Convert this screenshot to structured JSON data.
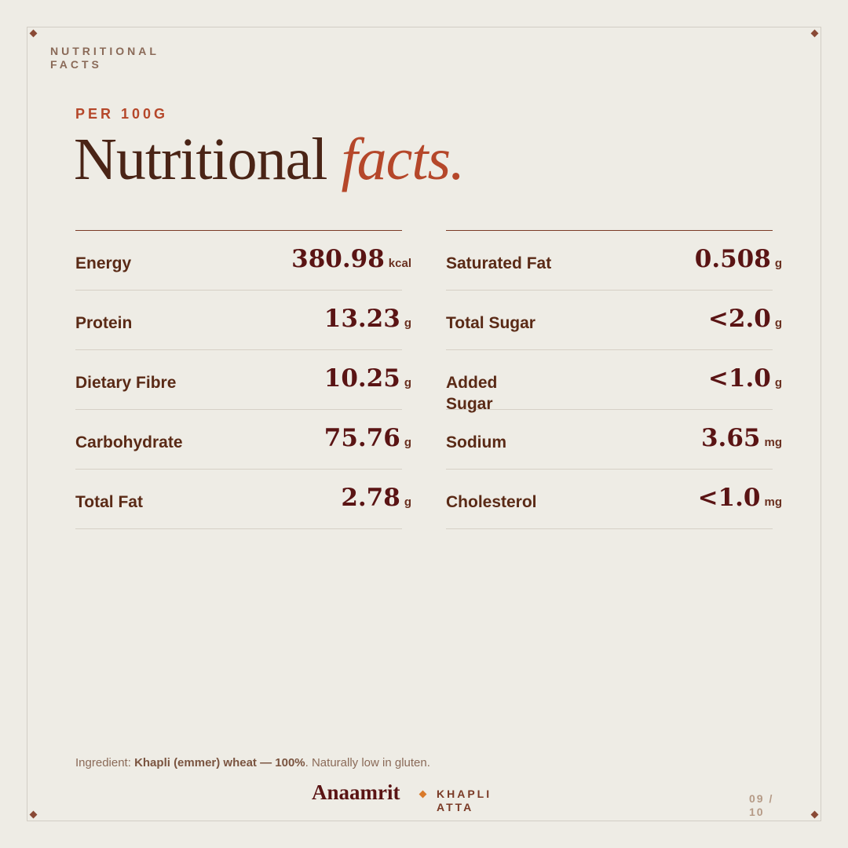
{
  "header": {
    "label": "NUTRITIONAL FACTS"
  },
  "eyebrow": "PER 100G",
  "title": {
    "main": "Nutritional",
    "accent": "facts."
  },
  "table": {
    "left": [
      {
        "label": "Energy",
        "value": "380.98",
        "unit": "kcal"
      },
      {
        "label": "Protein",
        "value": "13.23",
        "unit": "g"
      },
      {
        "label": "Dietary Fibre",
        "value": "10.25",
        "unit": "g"
      },
      {
        "label": "Carbohydrate",
        "value": "75.76",
        "unit": "g"
      },
      {
        "label": "Total Fat",
        "value": "2.78",
        "unit": "g"
      }
    ],
    "right": [
      {
        "label": "Saturated Fat",
        "value": "0.508",
        "unit": "g"
      },
      {
        "label": "Total Sugar",
        "value": "<2.0",
        "unit": "g"
      },
      {
        "label": "Added Sugar",
        "value": "<1.0",
        "unit": "g"
      },
      {
        "label": "Sodium",
        "value": "3.65",
        "unit": "mg"
      },
      {
        "label": "Cholesterol",
        "value": "<1.0",
        "unit": "mg"
      }
    ]
  },
  "footer": {
    "ingredient": {
      "prefix": "Ingredient:",
      "bold": "Khapli (emmer) wheat — 100%",
      "suffix": ". Naturally low in gluten."
    },
    "brand": "Anaamrit",
    "product": "KHAPLI ATTA",
    "page": "09 / 10"
  }
}
